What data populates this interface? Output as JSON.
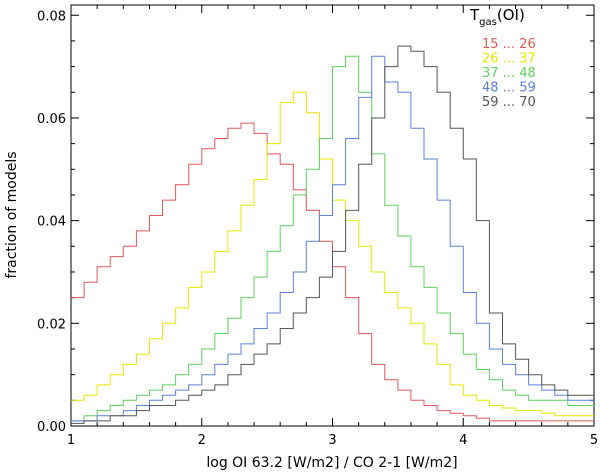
{
  "chart_data": {
    "type": "line",
    "step": true,
    "xlabel": "log OI 63.2 [W/m2] / CO 2-1 [W/m2]",
    "ylabel": "fraction  of  models",
    "xlim": [
      1,
      5
    ],
    "ylim": [
      0,
      0.082
    ],
    "x_ticks": [
      1,
      2,
      3,
      4,
      5
    ],
    "y_ticks": [
      0.0,
      0.02,
      0.04,
      0.06,
      0.08
    ],
    "x_tick_labels": [
      "1",
      "2",
      "3",
      "4",
      "5"
    ],
    "y_tick_labels": [
      "0.00",
      "0.02",
      "0.04",
      "0.06",
      "0.08"
    ],
    "grid": false,
    "bin_edges": [
      1.0,
      1.1,
      1.2,
      1.3,
      1.4,
      1.5,
      1.6,
      1.7,
      1.8,
      1.9,
      2.0,
      2.1,
      2.2,
      2.3,
      2.4,
      2.5,
      2.6,
      2.7,
      2.8,
      2.9,
      3.0,
      3.1,
      3.2,
      3.3,
      3.4,
      3.5,
      3.6,
      3.7,
      3.8,
      3.9,
      4.0,
      4.1,
      4.2,
      4.3,
      4.4,
      4.5,
      4.6,
      4.7,
      4.8,
      4.9,
      5.0
    ],
    "legend": {
      "title_main": "T",
      "title_sub": "gas",
      "title_rest": "(OI)",
      "placement": "top-right"
    },
    "series": [
      {
        "name_lo": "15",
        "name_hi": "26",
        "color": "#e05858",
        "values": [
          0.025,
          0.028,
          0.031,
          0.033,
          0.035,
          0.038,
          0.041,
          0.044,
          0.047,
          0.051,
          0.054,
          0.056,
          0.058,
          0.059,
          0.057,
          0.053,
          0.051,
          0.046,
          0.042,
          0.036,
          0.031,
          0.025,
          0.018,
          0.012,
          0.009,
          0.007,
          0.005,
          0.004,
          0.003,
          0.0025,
          0.002,
          0.0015,
          0.001,
          0.001,
          0.001,
          0.001,
          0.001,
          0.001,
          0.001,
          0.001
        ]
      },
      {
        "name_lo": "26",
        "name_hi": "37",
        "color": "#e6e600",
        "values": [
          0.005,
          0.006,
          0.008,
          0.01,
          0.012,
          0.014,
          0.017,
          0.02,
          0.023,
          0.027,
          0.03,
          0.034,
          0.038,
          0.043,
          0.048,
          0.055,
          0.063,
          0.065,
          0.061,
          0.052,
          0.044,
          0.04,
          0.035,
          0.03,
          0.026,
          0.023,
          0.02,
          0.016,
          0.012,
          0.008,
          0.006,
          0.005,
          0.004,
          0.0035,
          0.003,
          0.003,
          0.0025,
          0.002,
          0.002,
          0.002
        ]
      },
      {
        "name_lo": "37",
        "name_hi": "48",
        "color": "#5ed05e",
        "values": [
          0.001,
          0.002,
          0.003,
          0.004,
          0.005,
          0.006,
          0.007,
          0.008,
          0.01,
          0.012,
          0.015,
          0.018,
          0.021,
          0.025,
          0.029,
          0.034,
          0.039,
          0.045,
          0.05,
          0.056,
          0.07,
          0.072,
          0.065,
          0.053,
          0.043,
          0.037,
          0.031,
          0.027,
          0.022,
          0.018,
          0.014,
          0.011,
          0.009,
          0.007,
          0.006,
          0.005,
          0.005,
          0.005,
          0.004,
          0.004
        ]
      },
      {
        "name_lo": "48",
        "name_hi": "59",
        "color": "#5a82d8",
        "values": [
          0.001,
          0.001,
          0.002,
          0.002,
          0.003,
          0.004,
          0.005,
          0.006,
          0.007,
          0.008,
          0.01,
          0.012,
          0.014,
          0.016,
          0.019,
          0.022,
          0.026,
          0.03,
          0.036,
          0.041,
          0.047,
          0.056,
          0.064,
          0.072,
          0.067,
          0.065,
          0.058,
          0.052,
          0.044,
          0.035,
          0.026,
          0.02,
          0.015,
          0.012,
          0.01,
          0.008,
          0.007,
          0.006,
          0.005,
          0.005
        ]
      },
      {
        "name_lo": "59",
        "name_hi": "70",
        "color": "#555555",
        "values": [
          0.0005,
          0.001,
          0.001,
          0.002,
          0.002,
          0.003,
          0.004,
          0.004,
          0.005,
          0.006,
          0.007,
          0.008,
          0.01,
          0.012,
          0.014,
          0.016,
          0.019,
          0.022,
          0.025,
          0.029,
          0.034,
          0.042,
          0.051,
          0.06,
          0.07,
          0.074,
          0.073,
          0.07,
          0.065,
          0.058,
          0.052,
          0.04,
          0.022,
          0.016,
          0.013,
          0.01,
          0.008,
          0.007,
          0.006,
          0.006
        ]
      }
    ]
  }
}
